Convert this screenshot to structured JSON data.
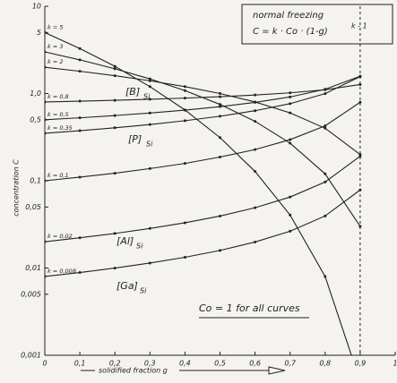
{
  "chart_data": {
    "type": "line",
    "formula_title": "normal freezing",
    "formula": "C = k · Co · (1-g)",
    "formula_exp": "k - 1",
    "xlabel": "solidified fraction g",
    "ylabel": "concentration C",
    "note": "Co = 1 for all curves",
    "annotations": [
      {
        "text": "[B]",
        "sub": "Si"
      },
      {
        "text": "[P]",
        "sub": "Si"
      },
      {
        "text": "[Al]",
        "sub": "Si"
      },
      {
        "text": "[Ga]",
        "sub": "Si"
      }
    ],
    "x": [
      0,
      0.1,
      0.2,
      0.3,
      0.4,
      0.5,
      0.6,
      0.7,
      0.8,
      0.9
    ],
    "series": [
      {
        "name": "k = 5",
        "color": "#222",
        "values": [
          5,
          3.28,
          2.048,
          1.2,
          0.648,
          0.3125,
          0.128,
          0.0405,
          0.008,
          0.0005
        ]
      },
      {
        "name": "k = 3",
        "color": "#222",
        "values": [
          3,
          2.43,
          1.92,
          1.47,
          1.08,
          0.75,
          0.48,
          0.27,
          0.12,
          0.03
        ]
      },
      {
        "name": "k = 2",
        "color": "#222",
        "values": [
          2,
          1.8,
          1.6,
          1.4,
          1.2,
          1.0,
          0.8,
          0.6,
          0.4,
          0.2
        ]
      },
      {
        "name": "k = 0,8",
        "color": "#222",
        "values": [
          0.8,
          0.817,
          0.836,
          0.859,
          0.886,
          0.919,
          0.961,
          1.018,
          1.104,
          1.268
        ]
      },
      {
        "name": "k = 0,5",
        "color": "#222",
        "values": [
          0.5,
          0.527,
          0.559,
          0.598,
          0.645,
          0.707,
          0.791,
          0.913,
          1.118,
          1.581
        ]
      },
      {
        "name": "k = 0,35",
        "color": "#222",
        "values": [
          0.35,
          0.375,
          0.405,
          0.441,
          0.488,
          0.549,
          0.635,
          0.765,
          0.996,
          1.563
        ]
      },
      {
        "name": "k = 0,1",
        "color": "#222",
        "values": [
          0.1,
          0.11,
          0.122,
          0.138,
          0.158,
          0.187,
          0.228,
          0.296,
          0.426,
          0.794
        ]
      },
      {
        "name": "k = 0,02",
        "color": "#222",
        "values": [
          0.02,
          0.0222,
          0.0249,
          0.0284,
          0.033,
          0.0394,
          0.0491,
          0.0651,
          0.0968,
          0.191
        ]
      },
      {
        "name": "k = 0,008",
        "color": "#222",
        "values": [
          0.008,
          0.00888,
          0.00998,
          0.0114,
          0.01328,
          0.0159,
          0.01986,
          0.0264,
          0.0395,
          0.0785
        ]
      }
    ],
    "vline": 0.9,
    "xlim": [
      0,
      1
    ],
    "xticks": [
      0,
      {
        "value": 0.1,
        "label": "0,1"
      },
      {
        "value": 0.2,
        "label": "0,2"
      },
      {
        "value": 0.3,
        "label": "0,3"
      },
      {
        "value": 0.4,
        "label": "0,4"
      },
      {
        "value": 0.5,
        "label": "0,5"
      },
      {
        "value": 0.6,
        "label": "0,6"
      },
      {
        "value": 0.7,
        "label": "0,7"
      },
      {
        "value": 0.8,
        "label": "0,8"
      },
      {
        "value": 0.9,
        "label": "0,9"
      },
      1
    ],
    "ylim": [
      0.001,
      10
    ],
    "yticks": [
      {
        "value": 0.001,
        "label": "0,001"
      },
      {
        "value": 0.005,
        "label": "0,005"
      },
      {
        "value": 0.01,
        "label": "0,01"
      },
      {
        "value": 0.05,
        "label": "0,05"
      },
      {
        "value": 0.1,
        "label": "0,1"
      },
      {
        "value": 0.5,
        "label": "0,5"
      },
      {
        "value": 1,
        "label": "1,0"
      },
      5,
      10
    ],
    "log_y": true
  }
}
